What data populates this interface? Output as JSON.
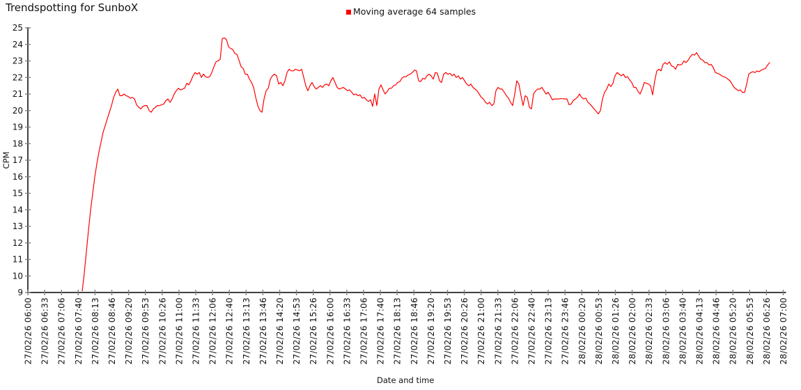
{
  "chart_data": {
    "type": "line",
    "title": "Trendspotting for SunboX",
    "ylabel": "CPM",
    "xlabel": "Date and time",
    "ylim": [
      9,
      25
    ],
    "ytick_step": 1,
    "grid": false,
    "legend": {
      "position": "top-center",
      "entries": [
        {
          "label": "Moving average 64 samples",
          "color": "#ff0000"
        }
      ]
    },
    "palette": {
      "axis": "#000000",
      "tick": "#808080",
      "text": "#111111"
    },
    "x_tick_labels": [
      "27/02/26 06:00",
      "27/02/26 06:33",
      "27/02/26 07:06",
      "27/02/26 07:40",
      "27/02/26 08:13",
      "27/02/26 08:46",
      "27/02/26 09:20",
      "27/02/26 09:53",
      "27/02/26 10:26",
      "27/02/26 11:00",
      "27/02/26 11:33",
      "27/02/26 12:06",
      "27/02/26 12:40",
      "27/02/26 13:13",
      "27/02/26 13:46",
      "27/02/26 14:20",
      "27/02/26 14:53",
      "27/02/26 15:26",
      "27/02/26 16:00",
      "27/02/26 16:33",
      "27/02/26 17:06",
      "27/02/26 17:40",
      "27/02/26 18:13",
      "27/02/26 18:46",
      "27/02/26 19:20",
      "27/02/26 19:53",
      "27/02/26 20:26",
      "27/02/26 21:00",
      "27/02/26 21:33",
      "27/02/26 22:06",
      "27/02/26 22:40",
      "27/02/26 23:13",
      "27/02/26 23:46",
      "28/02/26 00:20",
      "28/02/26 00:53",
      "28/02/26 01:26",
      "28/02/26 02:00",
      "28/02/26 02:33",
      "28/02/26 03:06",
      "28/02/26 03:40",
      "28/02/26 04:13",
      "28/02/26 04:46",
      "28/02/26 05:20",
      "28/02/26 05:53",
      "28/02/26 06:26",
      "28/02/26 07:00"
    ],
    "x_total_minutes": 1500,
    "x_tick_interval_min": 33.33,
    "series": [
      {
        "name": "Moving average 64 samples",
        "color": "#ff0000",
        "x_start_min": 108,
        "x_end_min": 1473,
        "x_start_label": "27/02/26 07:48",
        "x_end_label": "28/02/26 06:33",
        "values": [
          9.1,
          10.2,
          11.5,
          12.8,
          14.0,
          15.0,
          16.0,
          16.8,
          17.5,
          18.1,
          18.7,
          19.1,
          19.5,
          19.9,
          20.3,
          20.8,
          21.1,
          21.3,
          20.9,
          20.9,
          21.0,
          20.9,
          20.85,
          20.75,
          20.8,
          20.7,
          20.35,
          20.2,
          20.1,
          20.25,
          20.3,
          20.3,
          20.0,
          19.9,
          20.1,
          20.2,
          20.3,
          20.3,
          20.35,
          20.4,
          20.6,
          20.7,
          20.5,
          20.7,
          21.0,
          21.2,
          21.35,
          21.25,
          21.3,
          21.35,
          21.65,
          21.55,
          21.8,
          22.1,
          22.3,
          22.2,
          22.3,
          22.0,
          22.2,
          22.05,
          22.0,
          22.05,
          22.3,
          22.65,
          22.95,
          23.0,
          23.1,
          24.35,
          24.4,
          24.3,
          23.85,
          23.75,
          23.7,
          23.45,
          23.4,
          23.05,
          22.65,
          22.55,
          22.2,
          22.2,
          21.9,
          21.7,
          21.4,
          20.8,
          20.3,
          20.0,
          19.9,
          20.7,
          21.2,
          21.35,
          21.9,
          22.1,
          22.2,
          22.1,
          21.6,
          21.7,
          21.5,
          21.8,
          22.3,
          22.5,
          22.4,
          22.4,
          22.5,
          22.45,
          22.4,
          22.5,
          22.0,
          21.5,
          21.2,
          21.5,
          21.7,
          21.45,
          21.3,
          21.4,
          21.5,
          21.4,
          21.55,
          21.6,
          21.5,
          21.8,
          22.0,
          21.7,
          21.4,
          21.3,
          21.35,
          21.4,
          21.3,
          21.2,
          21.25,
          21.1,
          20.95,
          21.0,
          20.9,
          20.95,
          20.75,
          20.8,
          20.65,
          20.55,
          20.65,
          20.25,
          21.0,
          20.3,
          21.3,
          21.55,
          21.25,
          21.0,
          21.15,
          21.35,
          21.35,
          21.5,
          21.55,
          21.7,
          21.75,
          21.95,
          22.05,
          22.05,
          22.15,
          22.2,
          22.3,
          22.45,
          22.4,
          21.8,
          21.75,
          21.95,
          21.9,
          22.1,
          22.2,
          22.1,
          21.9,
          22.3,
          22.25,
          21.8,
          21.7,
          22.2,
          22.3,
          22.2,
          22.25,
          22.1,
          22.2,
          22.0,
          22.1,
          21.9,
          22.0,
          21.8,
          21.6,
          21.5,
          21.6,
          21.4,
          21.3,
          21.2,
          21.0,
          20.8,
          20.7,
          20.5,
          20.4,
          20.5,
          20.3,
          20.4,
          21.2,
          21.4,
          21.3,
          21.3,
          21.1,
          20.9,
          20.75,
          20.5,
          20.3,
          21.0,
          21.8,
          21.6,
          20.9,
          20.3,
          20.9,
          20.8,
          20.2,
          20.1,
          21.0,
          21.2,
          21.3,
          21.3,
          21.4,
          21.2,
          21.0,
          21.1,
          20.9,
          20.65,
          20.7,
          20.7,
          20.7,
          20.72,
          20.72,
          20.7,
          20.7,
          20.35,
          20.4,
          20.6,
          20.7,
          20.8,
          21.0,
          20.8,
          20.7,
          20.75,
          20.5,
          20.4,
          20.25,
          20.1,
          19.95,
          19.8,
          20.0,
          20.7,
          21.1,
          21.3,
          21.6,
          21.45,
          21.65,
          22.1,
          22.3,
          22.2,
          22.1,
          22.2,
          22.0,
          22.05,
          21.85,
          21.7,
          21.4,
          21.4,
          21.15,
          21.0,
          21.3,
          21.7,
          21.65,
          21.6,
          21.5,
          20.95,
          21.8,
          22.4,
          22.5,
          22.4,
          22.8,
          22.9,
          22.8,
          22.95,
          22.7,
          22.65,
          22.5,
          22.8,
          22.75,
          22.8,
          23.0,
          22.9,
          23.05,
          23.25,
          23.4,
          23.35,
          23.5,
          23.3,
          23.1,
          23.05,
          22.9,
          22.9,
          22.75,
          22.8,
          22.6,
          22.3,
          22.25,
          22.2,
          22.1,
          22.05,
          22.0,
          21.9,
          21.8,
          21.6,
          21.4,
          21.3,
          21.2,
          21.25,
          21.1,
          21.1,
          21.6,
          22.2,
          22.3,
          22.35,
          22.3,
          22.4,
          22.35,
          22.45,
          22.5,
          22.55,
          22.75,
          22.9
        ]
      }
    ]
  }
}
